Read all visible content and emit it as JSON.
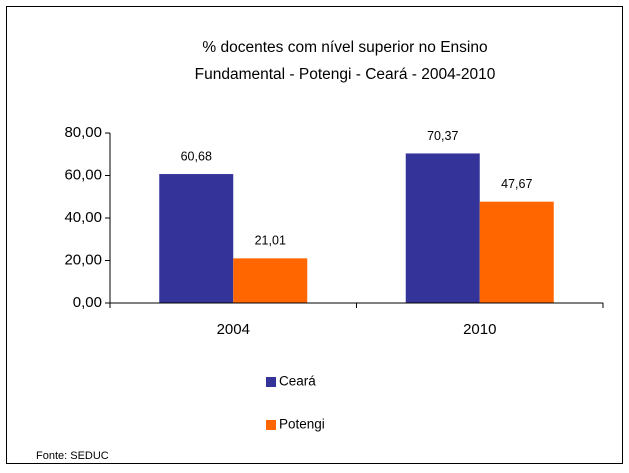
{
  "chart_data": {
    "type": "bar",
    "title": [
      "% docentes com nível  superior no Ensino",
      "Fundamental - Potengi  -  Ceará - 2004-2010"
    ],
    "categories": [
      "2004",
      "2010"
    ],
    "series": [
      {
        "name": "Ceará",
        "color": "#333399",
        "values": [
          60.68,
          70.37
        ],
        "value_labels": [
          "60,68",
          "70,37"
        ]
      },
      {
        "name": "Potengi",
        "color": "#ff6600",
        "values": [
          21.01,
          47.67
        ],
        "value_labels": [
          "21,01",
          "47,67"
        ]
      }
    ],
    "ylim": [
      0,
      80
    ],
    "yticks": [
      {
        "value": 0,
        "label": "0,00"
      },
      {
        "value": 20,
        "label": "20,00"
      },
      {
        "value": 40,
        "label": "40,00"
      },
      {
        "value": 60,
        "label": "60,00"
      },
      {
        "value": 80,
        "label": "80,00"
      }
    ],
    "grid": false,
    "legend": "bottom",
    "source": "Fonte: SEDUC"
  }
}
